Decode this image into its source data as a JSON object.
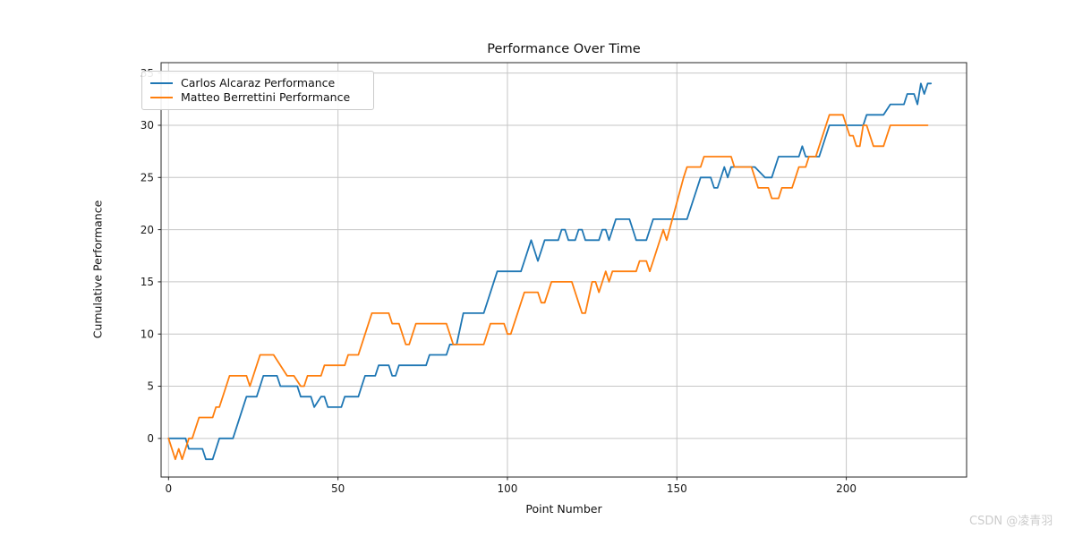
{
  "watermark": "CSDN @凌青羽",
  "chart_data": {
    "type": "line",
    "title": "Performance Over Time",
    "xlabel": "Point Number",
    "ylabel": "Cumulative Performance",
    "x_ticks": [
      0,
      50,
      100,
      150,
      200
    ],
    "y_ticks": [
      0,
      5,
      10,
      15,
      20,
      25,
      30,
      35
    ],
    "xlim": [
      -2.2,
      235.5
    ],
    "ylim": [
      -3.7,
      36.0
    ],
    "grid": true,
    "grid_color": "#c6c6c6",
    "axis_color": "#262626",
    "legend_position": "upper left",
    "series": [
      {
        "name": "Carlos Alcaraz Performance",
        "color": "#1f77b4",
        "points": [
          [
            0,
            0
          ],
          [
            5,
            0
          ],
          [
            6,
            -1
          ],
          [
            10,
            -1
          ],
          [
            11,
            -2
          ],
          [
            13,
            -2
          ],
          [
            15,
            0
          ],
          [
            19,
            0
          ],
          [
            23,
            4
          ],
          [
            26,
            4
          ],
          [
            27,
            5
          ],
          [
            28,
            6
          ],
          [
            32,
            6
          ],
          [
            33,
            5
          ],
          [
            38,
            5
          ],
          [
            39,
            4
          ],
          [
            42,
            4
          ],
          [
            43,
            3
          ],
          [
            45,
            4
          ],
          [
            46,
            4
          ],
          [
            47,
            3
          ],
          [
            51,
            3
          ],
          [
            52,
            4
          ],
          [
            56,
            4
          ],
          [
            57,
            5
          ],
          [
            58,
            6
          ],
          [
            61,
            6
          ],
          [
            62,
            7
          ],
          [
            65,
            7
          ],
          [
            66,
            6
          ],
          [
            67,
            6
          ],
          [
            68,
            7
          ],
          [
            76,
            7
          ],
          [
            77,
            8
          ],
          [
            82,
            8
          ],
          [
            83,
            9
          ],
          [
            85,
            9
          ],
          [
            87,
            12
          ],
          [
            93,
            12
          ],
          [
            97,
            16
          ],
          [
            104,
            16
          ],
          [
            105,
            17
          ],
          [
            107,
            19
          ],
          [
            108,
            18
          ],
          [
            109,
            17
          ],
          [
            111,
            19
          ],
          [
            115,
            19
          ],
          [
            116,
            20
          ],
          [
            117,
            20
          ],
          [
            118,
            19
          ],
          [
            120,
            19
          ],
          [
            121,
            20
          ],
          [
            122,
            20
          ],
          [
            123,
            19
          ],
          [
            127,
            19
          ],
          [
            128,
            20
          ],
          [
            129,
            20
          ],
          [
            130,
            19
          ],
          [
            131,
            20
          ],
          [
            132,
            21
          ],
          [
            136,
            21
          ],
          [
            137,
            20
          ],
          [
            138,
            19
          ],
          [
            141,
            19
          ],
          [
            142,
            20
          ],
          [
            143,
            21
          ],
          [
            153,
            21
          ],
          [
            157,
            25
          ],
          [
            160,
            25
          ],
          [
            161,
            24
          ],
          [
            162,
            24
          ],
          [
            164,
            26
          ],
          [
            165,
            25
          ],
          [
            166,
            26
          ],
          [
            172,
            26
          ],
          [
            173,
            26
          ],
          [
            176,
            25
          ],
          [
            178,
            25
          ],
          [
            180,
            27
          ],
          [
            186,
            27
          ],
          [
            187,
            28
          ],
          [
            188,
            27
          ],
          [
            192,
            27
          ],
          [
            195,
            30
          ],
          [
            205,
            30
          ],
          [
            206,
            31
          ],
          [
            211,
            31
          ],
          [
            213,
            32
          ],
          [
            217,
            32
          ],
          [
            218,
            33
          ],
          [
            220,
            33
          ],
          [
            221,
            32
          ],
          [
            222,
            34
          ],
          [
            223,
            33
          ],
          [
            224,
            34
          ],
          [
            225,
            34
          ]
        ]
      },
      {
        "name": "Matteo Berrettini Performance",
        "color": "#ff7f0e",
        "points": [
          [
            0,
            0
          ],
          [
            2,
            -2
          ],
          [
            3,
            -1
          ],
          [
            4,
            -2
          ],
          [
            6,
            0
          ],
          [
            7,
            0
          ],
          [
            9,
            2
          ],
          [
            13,
            2
          ],
          [
            14,
            3
          ],
          [
            15,
            3
          ],
          [
            18,
            6
          ],
          [
            23,
            6
          ],
          [
            24,
            5
          ],
          [
            25,
            6
          ],
          [
            27,
            8
          ],
          [
            31,
            8
          ],
          [
            33,
            7
          ],
          [
            35,
            6
          ],
          [
            37,
            6
          ],
          [
            39,
            5
          ],
          [
            40,
            5
          ],
          [
            41,
            6
          ],
          [
            45,
            6
          ],
          [
            46,
            7
          ],
          [
            52,
            7
          ],
          [
            53,
            8
          ],
          [
            56,
            8
          ],
          [
            60,
            12
          ],
          [
            65,
            12
          ],
          [
            66,
            11
          ],
          [
            68,
            11
          ],
          [
            70,
            9
          ],
          [
            71,
            9
          ],
          [
            73,
            11
          ],
          [
            82,
            11
          ],
          [
            84,
            9
          ],
          [
            93,
            9
          ],
          [
            95,
            11
          ],
          [
            99,
            11
          ],
          [
            100,
            10
          ],
          [
            101,
            10
          ],
          [
            105,
            14
          ],
          [
            109,
            14
          ],
          [
            110,
            13
          ],
          [
            111,
            13
          ],
          [
            113,
            15
          ],
          [
            119,
            15
          ],
          [
            120,
            14
          ],
          [
            122,
            12
          ],
          [
            123,
            12
          ],
          [
            125,
            15
          ],
          [
            126,
            15
          ],
          [
            127,
            14
          ],
          [
            128,
            15
          ],
          [
            129,
            16
          ],
          [
            130,
            15
          ],
          [
            131,
            16
          ],
          [
            138,
            16
          ],
          [
            139,
            17
          ],
          [
            141,
            17
          ],
          [
            142,
            16
          ],
          [
            143,
            17
          ],
          [
            144,
            18
          ],
          [
            146,
            20
          ],
          [
            147,
            19
          ],
          [
            152,
            25
          ],
          [
            153,
            26
          ],
          [
            157,
            26
          ],
          [
            158,
            27
          ],
          [
            166,
            27
          ],
          [
            167,
            26
          ],
          [
            172,
            26
          ],
          [
            173,
            25
          ],
          [
            174,
            24
          ],
          [
            177,
            24
          ],
          [
            178,
            23
          ],
          [
            180,
            23
          ],
          [
            181,
            24
          ],
          [
            184,
            24
          ],
          [
            185,
            25
          ],
          [
            186,
            26
          ],
          [
            188,
            26
          ],
          [
            189,
            27
          ],
          [
            191,
            27
          ],
          [
            192,
            28
          ],
          [
            194,
            30
          ],
          [
            195,
            31
          ],
          [
            199,
            31
          ],
          [
            200,
            30
          ],
          [
            201,
            29
          ],
          [
            202,
            29
          ],
          [
            203,
            28
          ],
          [
            204,
            28
          ],
          [
            205,
            30
          ],
          [
            206,
            30
          ],
          [
            207,
            29
          ],
          [
            208,
            28
          ],
          [
            211,
            28
          ],
          [
            212,
            29
          ],
          [
            213,
            30
          ],
          [
            224,
            30
          ]
        ]
      }
    ]
  }
}
